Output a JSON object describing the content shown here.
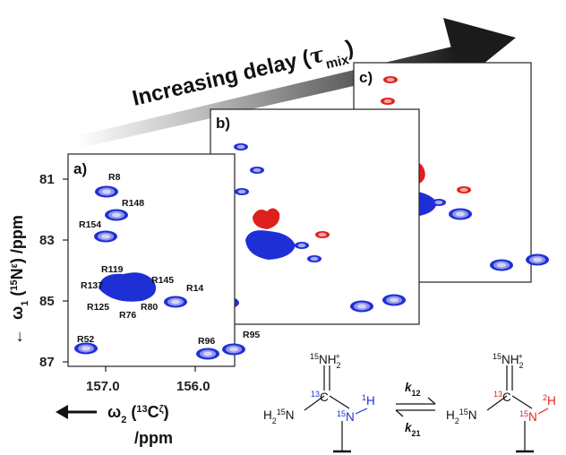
{
  "banner": {
    "text": "Increasing delay (",
    "tau": "τ",
    "tau_sub": "mix",
    "close": ")"
  },
  "panels": {
    "a": "a)",
    "b": "b)",
    "c": "c)"
  },
  "y_axis": {
    "arrow": "←",
    "label": "ω",
    "label_sub": "1",
    "label_rest": " (",
    "iso": "15",
    "nucleus": "N",
    "nucleus_sup": "ε",
    "unit": ") /ppm",
    "ticks": [
      "81",
      "83",
      "85",
      "87"
    ]
  },
  "x_axis": {
    "arrow": "←",
    "label": "ω",
    "label_sub": "2",
    "label_rest": " (",
    "iso": "13",
    "nucleus": "C",
    "nucleus_sup": "ζ",
    "label_close": ")",
    "unit": "/ppm",
    "ticks": [
      "157.0",
      "156.0"
    ]
  },
  "peaks": [
    "R8",
    "R148",
    "R154",
    "R119",
    "R145",
    "R137",
    "R14",
    "R125",
    "R76",
    "R80",
    "R52",
    "R96",
    "R95"
  ],
  "scheme": {
    "nh2_plus": {
      "iso": "15",
      "base": "NH",
      "sub": "2",
      "sup": "+"
    },
    "h2n": {
      "base": "H",
      "sub": "2",
      "iso": "15",
      "rest": "N"
    },
    "c13": "13",
    "c_atom": "C",
    "n15": "15",
    "n_atom": "N",
    "h1_iso": "1",
    "h2_iso": "2",
    "h_atom": "H",
    "k_forward": {
      "k": "k",
      "sub": "12"
    },
    "k_backward": {
      "k": "k",
      "sub": "21"
    }
  },
  "colors": {
    "positive": "#1f2fd6",
    "negative": "#e0201c"
  }
}
